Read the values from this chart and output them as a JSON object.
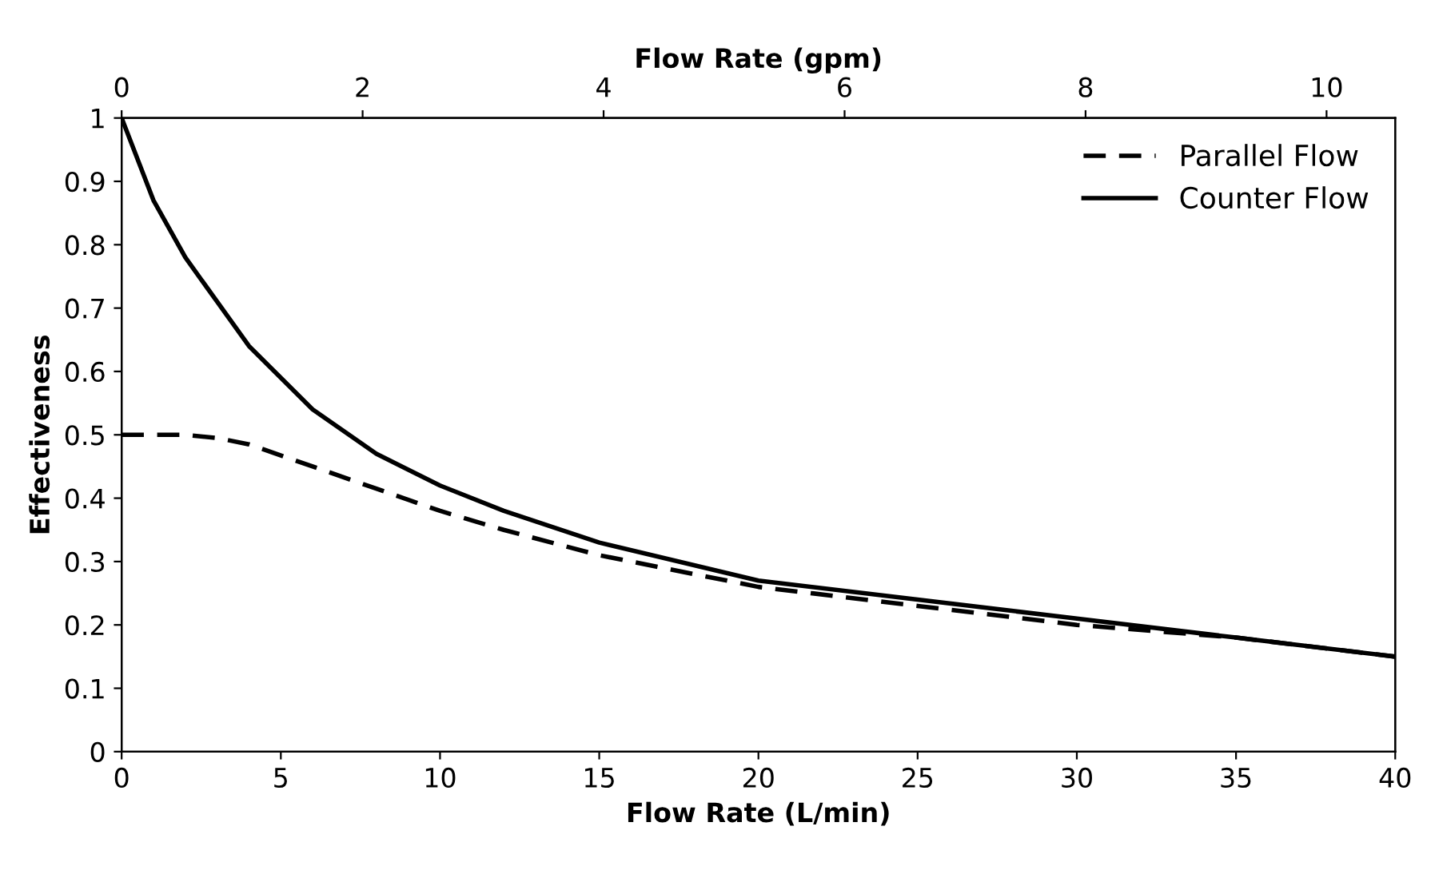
{
  "chart_data": {
    "type": "line",
    "xlabel": "Flow Rate (L/min)",
    "ylabel": "Effectiveness",
    "x2label": "Flow Rate (gpm)",
    "x": [
      0,
      1,
      2,
      3,
      4,
      6,
      8,
      10,
      12,
      15,
      20,
      25,
      30,
      35,
      40
    ],
    "series": [
      {
        "name": "Parallel Flow",
        "color": "#000000",
        "line_style": "dashed",
        "values": [
          0.5,
          0.5,
          0.5,
          0.495,
          0.485,
          0.45,
          0.415,
          0.38,
          0.35,
          0.31,
          0.26,
          0.23,
          0.2,
          0.18,
          0.15
        ]
      },
      {
        "name": "Counter Flow",
        "color": "#000000",
        "line_style": "solid",
        "values": [
          1.0,
          0.87,
          0.78,
          0.71,
          0.64,
          0.54,
          0.47,
          0.42,
          0.38,
          0.33,
          0.27,
          0.24,
          0.21,
          0.18,
          0.15
        ]
      }
    ],
    "xlim": [
      0,
      40
    ],
    "xticks": [
      0,
      5,
      10,
      15,
      20,
      25,
      30,
      35,
      40
    ],
    "ylim": [
      0,
      1
    ],
    "yticks": [
      0,
      0.1,
      0.2,
      0.3,
      0.4,
      0.5,
      0.6,
      0.7,
      0.8,
      0.9,
      1
    ],
    "x2lim": [
      0,
      10.57
    ],
    "x2ticks": [
      0,
      2,
      4,
      6,
      8,
      10
    ],
    "grid": false,
    "legend": "top right",
    "marker": "none"
  }
}
